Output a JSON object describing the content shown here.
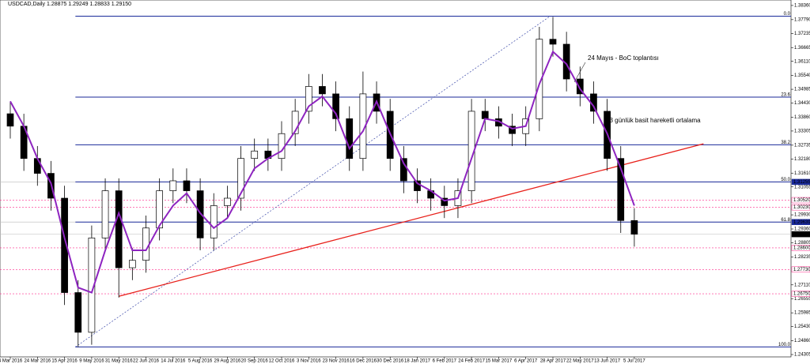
{
  "chart_data": {
    "type": "candlestick",
    "title": "USDCAD,Daily  1.28875 1.29249 1.28833 1.29150",
    "annotations": [
      "24 Mayıs - BoC toplantısı",
      "13 günlük basit hareketli ortalama"
    ],
    "categories": [
      "4 Mar 2016",
      null,
      "24 Mar 2016",
      null,
      "15 Apr 2016",
      null,
      "9 May 2016",
      null,
      "31 May 2016",
      null,
      "22 Jun 2016",
      null,
      "14 Jul 2016",
      null,
      "5 Aug 2016",
      null,
      "29 Aug 2016",
      null,
      "20 Sep 2016",
      null,
      "12 Oct 2016",
      null,
      "3 Nov 2016",
      null,
      "23 Nov 2016",
      null,
      "16 Dec 2016",
      null,
      "30 Dec 2016",
      null,
      "18 Jan 2017",
      null,
      "6 Feb 2017",
      null,
      "24 Feb 2017",
      null,
      "15 Mar 2017",
      null,
      "6 Apr 2017",
      null,
      "28 Apr 2017",
      null,
      "22 May 2017",
      null,
      "13 Jun 2017",
      null,
      "5 Jul 2017"
    ],
    "open": [
      1.34,
      1.335,
      1.322,
      1.316,
      1.306,
      1.268,
      1.252,
      1.29,
      1.309,
      1.278,
      1.281,
      1.294,
      1.309,
      1.313,
      1.309,
      1.29,
      1.303,
      1.306,
      1.322,
      1.325,
      1.322,
      1.332,
      1.341,
      1.351,
      1.348,
      1.338,
      1.322,
      1.348,
      1.341,
      1.322,
      1.313,
      1.309,
      1.306,
      1.303,
      1.309,
      1.341,
      1.338,
      1.335,
      1.332,
      1.338,
      1.37,
      1.368,
      1.354,
      1.348,
      1.341,
      1.322,
      1.297
    ],
    "high": [
      1.345,
      1.34,
      1.327,
      1.321,
      1.311,
      1.273,
      1.295,
      1.314,
      1.314,
      1.286,
      1.299,
      1.314,
      1.318,
      1.318,
      1.314,
      1.308,
      1.311,
      1.327,
      1.33,
      1.33,
      1.337,
      1.346,
      1.356,
      1.356,
      1.353,
      1.343,
      1.357,
      1.353,
      1.346,
      1.327,
      1.318,
      1.314,
      1.311,
      1.314,
      1.346,
      1.346,
      1.343,
      1.34,
      1.343,
      1.375,
      1.379,
      1.373,
      1.359,
      1.353,
      1.346,
      1.327,
      1.302
    ],
    "low": [
      1.33,
      1.317,
      1.311,
      1.301,
      1.263,
      1.2461,
      1.247,
      1.285,
      1.266,
      1.273,
      1.276,
      1.289,
      1.304,
      1.304,
      1.285,
      1.285,
      1.298,
      1.301,
      1.317,
      1.317,
      1.317,
      1.327,
      1.336,
      1.343,
      1.333,
      1.317,
      1.317,
      1.336,
      1.317,
      1.308,
      1.304,
      1.301,
      1.298,
      1.298,
      1.304,
      1.333,
      1.33,
      1.327,
      1.327,
      1.333,
      1.363,
      1.349,
      1.343,
      1.336,
      1.317,
      1.292,
      1.2865
    ],
    "close": [
      1.335,
      1.322,
      1.316,
      1.306,
      1.268,
      1.252,
      1.29,
      1.309,
      1.278,
      1.281,
      1.294,
      1.309,
      1.313,
      1.309,
      1.29,
      1.303,
      1.306,
      1.322,
      1.325,
      1.322,
      1.332,
      1.341,
      1.351,
      1.348,
      1.338,
      1.322,
      1.348,
      1.341,
      1.322,
      1.313,
      1.309,
      1.306,
      1.303,
      1.309,
      1.341,
      1.338,
      1.335,
      1.332,
      1.338,
      1.37,
      1.368,
      1.354,
      1.348,
      1.341,
      1.322,
      1.297,
      1.2915
    ],
    "series": [
      {
        "name": "13 günlük basit hareketli ortalama",
        "color": "#8e24c0",
        "values": [
          1.345,
          1.335,
          1.322,
          1.312,
          1.29,
          1.27,
          1.268,
          1.285,
          1.3,
          1.285,
          1.285,
          1.295,
          1.303,
          1.308,
          1.3,
          1.294,
          1.298,
          1.308,
          1.318,
          1.322,
          1.325,
          1.333,
          1.343,
          1.347,
          1.34,
          1.326,
          1.333,
          1.345,
          1.332,
          1.32,
          1.312,
          1.309,
          1.305,
          1.306,
          1.322,
          1.338,
          1.337,
          1.334,
          1.335,
          1.352,
          1.365,
          1.36,
          1.35,
          1.343,
          1.332,
          1.318,
          1.303
        ]
      }
    ],
    "ylim": [
      1.2421,
      1.3858
    ],
    "yticks": [
      {
        "value": 1.3836,
        "label": "1.38360"
      },
      {
        "value": 1.3779,
        "label": "1.37790"
      },
      1.37235,
      1.36665,
      {
        "value": 1.3611,
        "label": "1.36110"
      },
      {
        "value": 1.3554,
        "label": "1.35540"
      },
      1.34985,
      {
        "value": 1.3443,
        "label": "1.34430"
      },
      {
        "value": 1.3386,
        "label": "1.33860"
      },
      1.33305,
      1.32735,
      {
        "value": 1.3218,
        "label": "1.32180"
      },
      {
        "value": 1.3161,
        "label": "1.31610"
      },
      1.31055,
      {
        "value": 1.2993,
        "label": "1.29930"
      },
      {
        "value": 1.2936,
        "label": "1.29360"
      },
      1.28805,
      1.28235,
      {
        "value": 1.2711,
        "label": "1.27110"
      },
      1.26555,
      1.25985,
      {
        "value": 1.2543,
        "label": "1.25430"
      },
      {
        "value": 1.2486,
        "label": "1.24860"
      },
      1.24305
    ],
    "fib_levels": [
      {
        "label": "0.0",
        "price": 1.3793
      },
      {
        "label": "23.6",
        "price": 1.3467
      },
      {
        "label": "38.2",
        "price": 1.3275
      },
      {
        "label": "50.0",
        "price": 1.31255
      },
      {
        "label": "61.8",
        "price": 1.29639
      },
      {
        "label": "100.0",
        "price": 1.2461
      }
    ],
    "fib_color": "#1a2a9a",
    "fib_anchor": [
      {
        "index": 4.8,
        "price": 1.2461
      },
      {
        "index": 39.8,
        "price": 1.3793
      }
    ],
    "trendline": {
      "color": "#e8201a",
      "points": [
        {
          "index": 8,
          "price": 1.2665
        },
        {
          "index": 51.1,
          "price": 1.3279
        }
      ]
    },
    "price_labels": [
      {
        "value": 1.31255,
        "label": "1.31255",
        "color": "#1a2a9a"
      },
      {
        "value": 1.3052,
        "label": "1.30520",
        "color": "#ff2a8a"
      },
      {
        "value": 1.3023,
        "label": "1.30230",
        "color": "#ff2a8a"
      },
      {
        "value": 1.29639,
        "label": "1.29639",
        "color": "#1a2a9a"
      },
      {
        "value": 1.2915,
        "label": "1.29150",
        "color": "#000000"
      },
      {
        "value": 1.286,
        "label": "1.28600",
        "color": "#ff2a8a"
      },
      {
        "value": 1.2773,
        "label": "1.27730",
        "color": "#ff2a8a"
      },
      {
        "value": 1.2675,
        "label": "1.26750",
        "color": "#ff2a8a"
      }
    ]
  }
}
